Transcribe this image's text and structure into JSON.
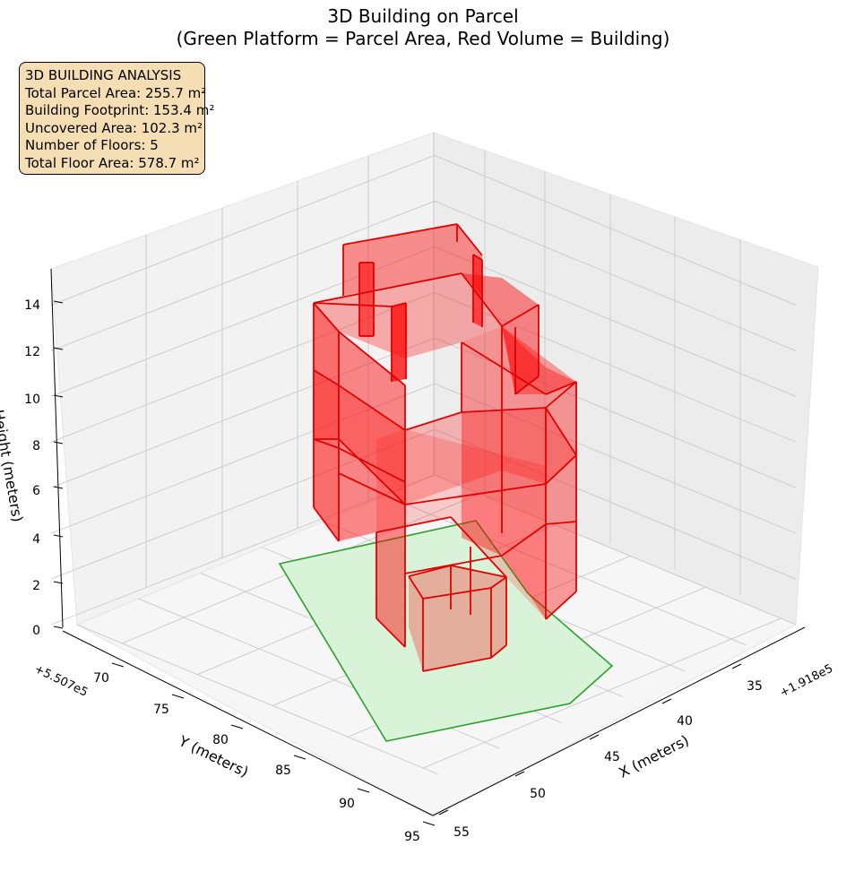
{
  "title_line1": "3D Building on Parcel",
  "title_line2": "(Green Platform = Parcel Area, Red Volume = Building)",
  "info_box": {
    "lines": [
      "3D BUILDING ANALYSIS",
      "Total Parcel Area: 255.7 m²",
      "Building Footprint: 153.4 m²",
      "Uncovered Area: 102.3 m²",
      "Number of Floors: 5",
      "Total Floor Area: 578.7 m²"
    ]
  },
  "colors": {
    "parcel_fill": "#d6f2d6",
    "parcel_edge": "#2ca02c",
    "building_fill": "#ff0000",
    "building_edge": "#e00000",
    "pane": "#f2f2f2",
    "grid": "#c8c8c8",
    "info_bg": "#f5deb3"
  },
  "chart_data": {
    "type": "3d-polygon",
    "title": "3D Building on Parcel\n(Green Platform = Parcel Area, Red Volume = Building)",
    "xlabel": "X (meters)",
    "ylabel": "Y (meters)",
    "zlabel": "Height (meters)",
    "x_offset_label": "+1.918e5",
    "y_offset_label": "+5.507e5",
    "x_ticks": [
      "35",
      "40",
      "45",
      "50",
      "55"
    ],
    "y_ticks": [
      "70",
      "75",
      "80",
      "85",
      "90",
      "95"
    ],
    "z_ticks": [
      "0",
      "2",
      "4",
      "6",
      "8",
      "10",
      "12",
      "14"
    ],
    "xlim": [
      32,
      56
    ],
    "ylim": [
      66,
      95
    ],
    "zlim": [
      0,
      15
    ],
    "parcel_area_m2": 255.7,
    "building_footprint_m2": 153.4,
    "uncovered_area_m2": 102.3,
    "number_of_floors": 5,
    "total_floor_area_m2": 578.7,
    "series": [
      {
        "name": "Parcel Area",
        "kind": "parcel"
      },
      {
        "name": "Building",
        "kind": "building"
      }
    ]
  }
}
